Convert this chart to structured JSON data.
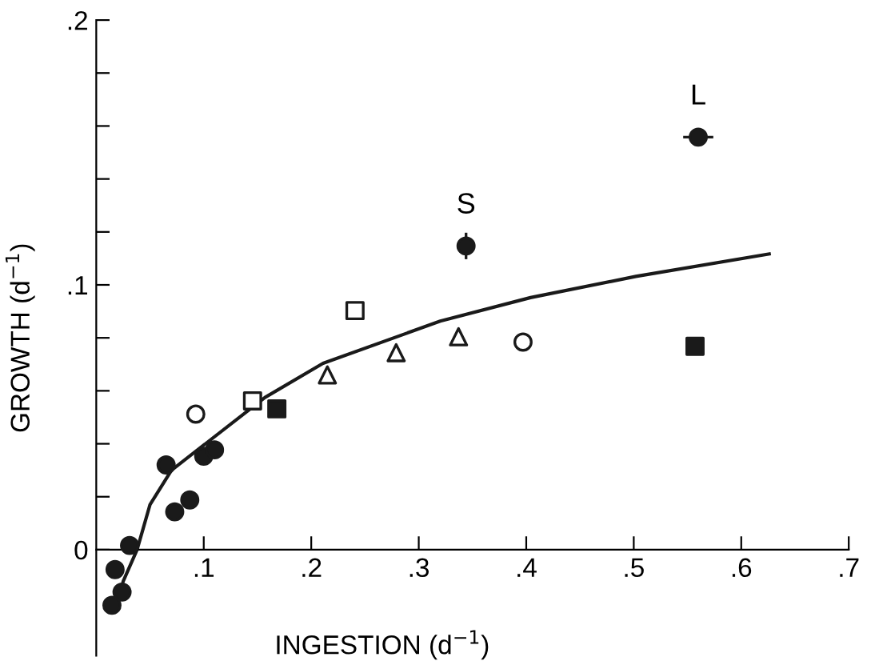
{
  "chart_data": {
    "type": "scatter",
    "xlabel": "INGESTION (d$^{−1}$)",
    "ylabel": "GROWTH (d$^{−1}$)",
    "xlim": [
      0,
      0.7
    ],
    "ylim": [
      -0.04,
      0.2
    ],
    "xticks": [
      {
        "value": 0.1,
        "label": ".1"
      },
      {
        "value": 0.2,
        "label": ".2"
      },
      {
        "value": 0.3,
        "label": ".3"
      },
      {
        "value": 0.4,
        "label": ".4"
      },
      {
        "value": 0.5,
        "label": ".5"
      },
      {
        "value": 0.6,
        "label": ".6"
      },
      {
        "value": 0.7,
        "label": ".7"
      }
    ],
    "yticks": [
      {
        "value": 0,
        "label": "0"
      },
      {
        "value": 0.02,
        "label": null
      },
      {
        "value": 0.04,
        "label": null
      },
      {
        "value": 0.06,
        "label": null
      },
      {
        "value": 0.08,
        "label": null
      },
      {
        "value": 0.1,
        "label": ".1"
      },
      {
        "value": 0.12,
        "label": null
      },
      {
        "value": 0.14,
        "label": null
      },
      {
        "value": 0.16,
        "label": null
      },
      {
        "value": 0.18,
        "label": null
      },
      {
        "value": 0.2,
        "label": ".2"
      }
    ],
    "grid": false,
    "legend": false,
    "series": [
      {
        "marker": "circle",
        "color": "#1a1a1a",
        "x": [
          0.0175,
          0.0146,
          0.024,
          0.031,
          0.065,
          0.073,
          0.087,
          0.1,
          0.11,
          0.344,
          0.56
        ],
        "values": [
          -0.0075,
          -0.021,
          -0.016,
          0.0016,
          0.032,
          0.0143,
          0.0188,
          0.0353,
          0.0377,
          0.1147,
          0.1558
        ],
        "errors": [
          null,
          null,
          null,
          null,
          null,
          null,
          null,
          null,
          null,
          0.005,
          null
        ],
        "xerrors": [
          null,
          null,
          null,
          null,
          null,
          null,
          null,
          null,
          null,
          null,
          0.014
        ]
      },
      {
        "marker": "circle",
        "color": "#ffffff",
        "x": [
          0.0926,
          0.397
        ],
        "values": [
          0.0512,
          0.0784
        ]
      },
      {
        "marker": "square",
        "color": "#ffffff",
        "x": [
          0.1454,
          0.2407
        ],
        "values": [
          0.0562,
          0.0903
        ]
      },
      {
        "marker": "square",
        "color": "#1a1a1a",
        "x": [
          0.168,
          0.557
        ],
        "values": [
          0.0532,
          0.0768
        ]
      },
      {
        "marker": "triangle",
        "color": "#ffffff",
        "x": [
          0.215,
          0.279,
          0.337
        ],
        "values": [
          0.066,
          0.0744,
          0.0804
        ]
      },
      {
        "type": "line",
        "marker": "none",
        "color": "#1a1a1a",
        "x": [
          0.0185,
          0.025,
          0.038,
          0.05,
          0.07,
          0.1,
          0.157,
          0.211,
          0.32,
          0.404,
          0.502,
          0.626
        ],
        "values": [
          -0.0228,
          -0.012,
          0,
          0.017,
          0.03,
          0.0395,
          0.0575,
          0.0704,
          0.0863,
          0.0952,
          0.1032,
          0.1117
        ]
      }
    ],
    "annotations": [
      {
        "text": "S",
        "x": 0.344,
        "y": 0.1147
      },
      {
        "text": "L",
        "x": 0.56,
        "y": 0.1558
      }
    ]
  }
}
